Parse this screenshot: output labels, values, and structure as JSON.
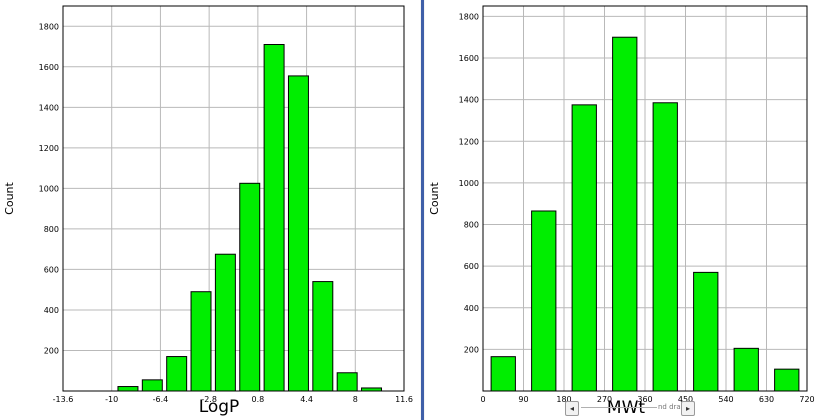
{
  "panels": [
    {
      "chart_data": {
        "type": "bar",
        "xlabel": "LogP",
        "ylabel": "Count",
        "xlim": [
          -13.6,
          11.6
        ],
        "ylim": [
          0,
          1900
        ],
        "xticks": [
          "-13.6",
          "-10",
          "-6.4",
          "-2.8",
          "0.8",
          "4.4",
          "8",
          "11.6"
        ],
        "yticks": [
          "200",
          "400",
          "600",
          "800",
          "1000",
          "1200",
          "1400",
          "1600",
          "1800"
        ],
        "grid": true,
        "bin_centers": [
          -8.8,
          -7.0,
          -5.2,
          -3.4,
          -1.6,
          0.2,
          2.0,
          3.8,
          5.6,
          7.4,
          9.2
        ],
        "values": [
          22,
          55,
          170,
          490,
          675,
          1025,
          1710,
          1555,
          540,
          90,
          15
        ]
      }
    },
    {
      "chart_data": {
        "type": "bar",
        "xlabel": "MWt",
        "ylabel": "Count",
        "xlim": [
          0,
          720
        ],
        "ylim": [
          0,
          1850
        ],
        "xticks": [
          "0",
          "90",
          "180",
          "270",
          "360",
          "450",
          "540",
          "630",
          "720"
        ],
        "yticks": [
          "200",
          "400",
          "600",
          "800",
          "1000",
          "1200",
          "1400",
          "1600",
          "1800"
        ],
        "grid": true,
        "bin_centers": [
          45,
          135,
          225,
          315,
          405,
          495,
          585,
          675
        ],
        "values": [
          165,
          865,
          1375,
          1700,
          1385,
          570,
          205,
          105
        ]
      }
    }
  ],
  "scrollbar": {
    "prev_label": "◂",
    "next_label": "▸",
    "text": "nd dra"
  },
  "colors": {
    "bar_fill": "#00ee00",
    "bar_stroke": "#000000",
    "grid": "#b9b9b9",
    "divider": "#3f5fa8"
  }
}
